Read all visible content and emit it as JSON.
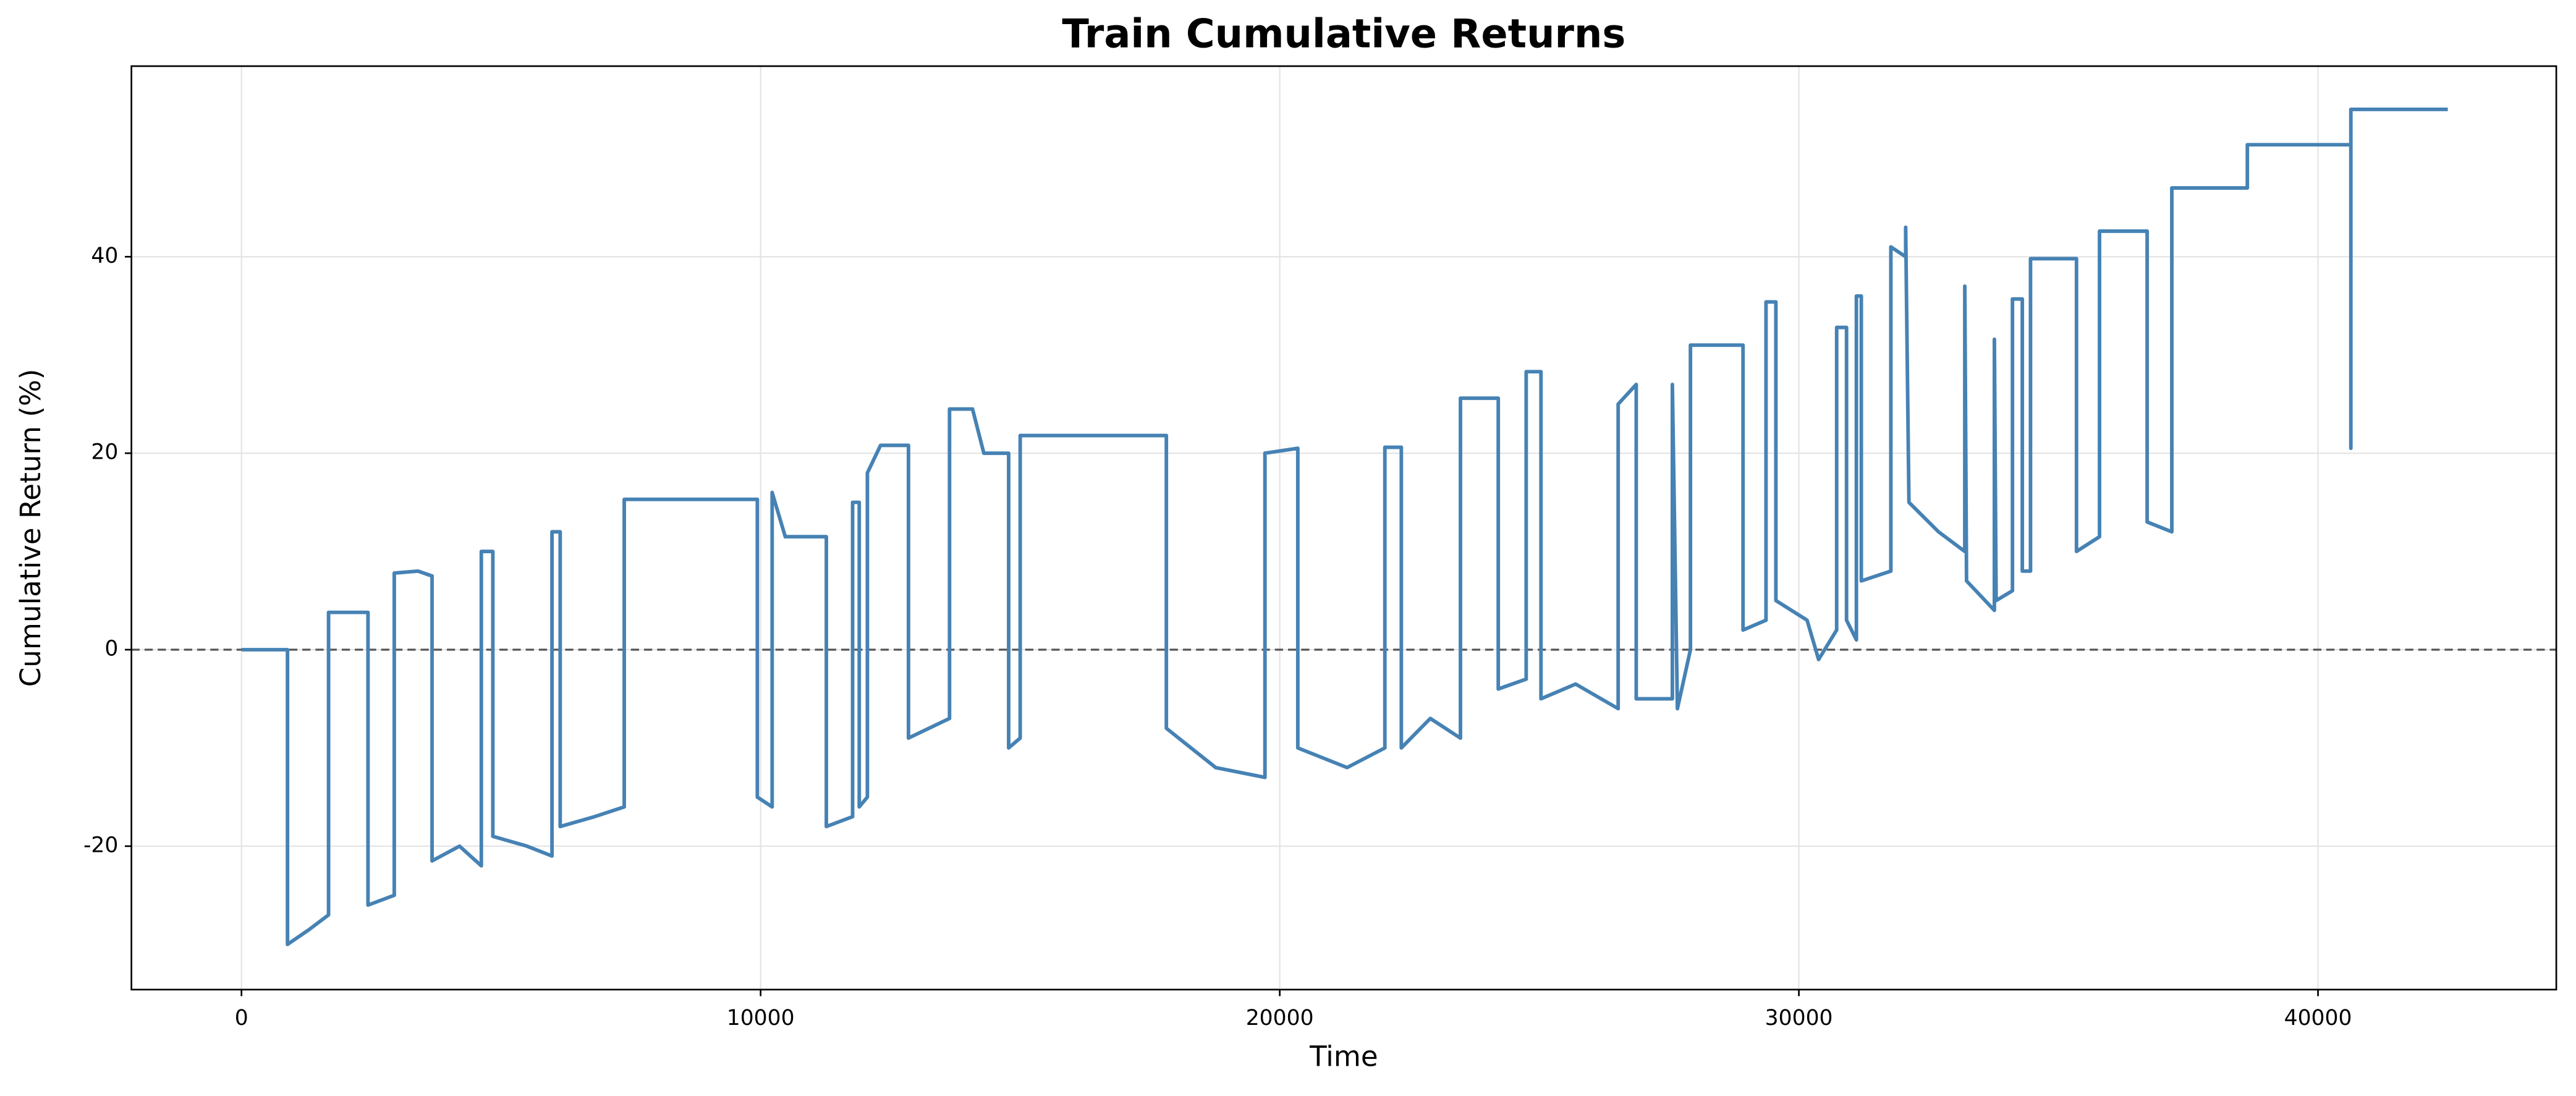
{
  "chart_data": {
    "type": "line",
    "title": "Train Cumulative Returns",
    "x_label": "Time",
    "y_label": "Cumulative Return (%)",
    "xlim": [
      -2120,
      44590
    ],
    "ylim": [
      -34.6,
      59.4
    ],
    "xticks": [
      0,
      10000,
      20000,
      30000,
      40000
    ],
    "yticks": [
      -20,
      0,
      20,
      40
    ],
    "grid": true,
    "hline": 0,
    "series": [
      {
        "color": "#4682b4",
        "x": [
          0,
          886,
          886,
          1300,
          1677,
          1677,
          2437,
          2437,
          2943,
          2943,
          3400,
          3671,
          3671,
          4200,
          4620,
          4620,
          4842,
          4842,
          5500,
          5981,
          5981,
          6139,
          6139,
          6800,
          7373,
          7373,
          9937,
          9937,
          10222,
          10222,
          10475,
          11266,
          11266,
          11772,
          11772,
          11900,
          11900,
          12057,
          12057,
          12310,
          12848,
          12848,
          13639,
          13639,
          14082,
          14300,
          14778,
          14778,
          15000,
          15000,
          17816,
          17816,
          18766,
          19715,
          19715,
          20348,
          20348,
          21297,
          22025,
          22025,
          22342,
          22342,
          22900,
          23481,
          23481,
          24209,
          24209,
          24747,
          24747,
          25032,
          25032,
          25700,
          26519,
          26519,
          26867,
          26867,
          27563,
          27563,
          27660,
          27911,
          27911,
          28924,
          28924,
          29367,
          29367,
          29557,
          29557,
          30158,
          30380,
          30728,
          30728,
          30918,
          30918,
          31108,
          31108,
          31203,
          31203,
          31772,
          31772,
          32057,
          32057,
          32120,
          32690,
          33196,
          33196,
          33230,
          33766,
          33766,
          33800,
          34114,
          34114,
          34304,
          34304,
          34462,
          34462,
          35348,
          35348,
          35791,
          35791,
          36709,
          36709,
          37184,
          37184,
          38639,
          38639,
          40633,
          40633,
          40633,
          42500
        ],
        "values": [
          0,
          0,
          -30,
          -28.5,
          -27,
          3.8,
          3.8,
          -26,
          -25,
          7.8,
          8,
          7.5,
          -21.5,
          -20,
          -22,
          10,
          10,
          -19,
          -20,
          -21,
          12,
          12,
          -18,
          -17,
          -16,
          15.3,
          15.3,
          -15,
          -16,
          16,
          11.5,
          11.5,
          -18,
          -17,
          15,
          15,
          -16,
          -15,
          18,
          20.8,
          20.8,
          -9,
          -7,
          24.5,
          24.5,
          20,
          20,
          -10,
          -9,
          21.8,
          21.8,
          -8,
          -12,
          -13,
          20,
          20.5,
          -10,
          -12,
          -10,
          20.6,
          20.6,
          -10,
          -7,
          -9,
          25.6,
          25.6,
          -4,
          -3,
          28.3,
          28.3,
          -5,
          -3.5,
          -6,
          25,
          27,
          -5,
          -5,
          27,
          -6,
          0,
          31,
          31,
          2,
          3,
          35.4,
          35.4,
          5,
          3,
          -1,
          2,
          32.8,
          32.8,
          3,
          1,
          36,
          36,
          7,
          8,
          41,
          40,
          43,
          15,
          12,
          10,
          37,
          7,
          4,
          31.6,
          5,
          6,
          35.7,
          35.7,
          8,
          8,
          39.8,
          39.8,
          10,
          11.5,
          42.6,
          42.6,
          13,
          12,
          47,
          47,
          51.4,
          51.4,
          20.5,
          55,
          55
        ]
      }
    ]
  }
}
